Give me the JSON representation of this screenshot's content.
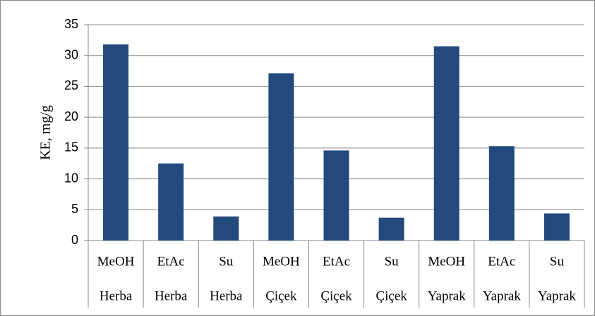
{
  "chart_data": {
    "type": "bar",
    "y_label": "KE, mg/g",
    "categories": [
      [
        "MeOH",
        "Herba"
      ],
      [
        "EtAc",
        "Herba"
      ],
      [
        "Su",
        "Herba"
      ],
      [
        "MeOH",
        "Çiçek"
      ],
      [
        "EtAc",
        "Çiçek"
      ],
      [
        "Su",
        "Çiçek"
      ],
      [
        "MeOH",
        "Yaprak"
      ],
      [
        "EtAc",
        "Yaprak"
      ],
      [
        "Su",
        "Yaprak"
      ]
    ],
    "values": [
      31.8,
      12.5,
      3.9,
      27.1,
      14.6,
      3.7,
      31.5,
      15.3,
      4.4
    ],
    "color": "#23497d",
    "ylim": [
      0,
      35
    ],
    "yticks": [
      0,
      5,
      10,
      15,
      20,
      25,
      30,
      35
    ],
    "grid": true
  }
}
